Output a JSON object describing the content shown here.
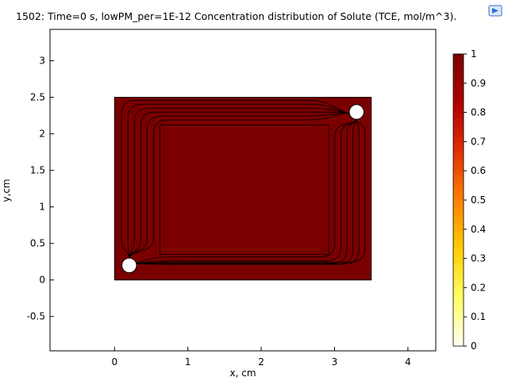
{
  "colors": {
    "domain_fill": "#7a0000",
    "frame": "#000000",
    "background": "#ffffff",
    "colormap": [
      "#fffff0",
      "#ffff66",
      "#ffcc00",
      "#ff8000",
      "#e03000",
      "#b00000",
      "#7a0000"
    ],
    "export_icon": "#2a6fd6"
  },
  "icons": {
    "export": "export-image-icon"
  },
  "chart_data": {
    "type": "heatmap",
    "title": "1502: Time=0 s, lowPM_per=1E-12  Concentration distribution of Solute (TCE, mol/m^3).",
    "xlabel": "x, cm",
    "ylabel": "y,cm",
    "xlim": [
      -0.88,
      4.38
    ],
    "ylim": [
      -0.97,
      3.43
    ],
    "xticks": [
      0,
      1,
      2,
      3,
      4
    ],
    "yticks": [
      -0.5,
      0,
      0.5,
      1,
      1.5,
      2,
      2.5,
      3
    ],
    "domain": {
      "x": [
        0,
        3.5
      ],
      "y": [
        0,
        2.5
      ],
      "value": 1
    },
    "inner_region": {
      "x": [
        0.62,
        2.92
      ],
      "y": [
        0.35,
        2.12
      ]
    },
    "wells": [
      {
        "x": 0.2,
        "y": 0.2,
        "r": 0.1
      },
      {
        "x": 3.3,
        "y": 2.3,
        "r": 0.1
      }
    ],
    "colorbar": {
      "min": 0,
      "max": 1,
      "ticks": [
        0,
        0.1,
        0.2,
        0.3,
        0.4,
        0.5,
        0.6,
        0.7,
        0.8,
        0.9,
        1
      ]
    },
    "grid": false
  }
}
